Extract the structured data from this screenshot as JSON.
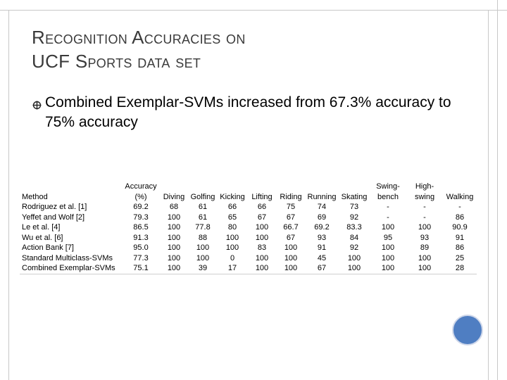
{
  "title": {
    "line1": "Recognition Accuracies on",
    "line2": "UCF Sports data set"
  },
  "bullet": {
    "icon": "crossed-bullet-icon",
    "text": "Combined Exemplar-SVMs increased from 67.3% accuracy to 75% accuracy"
  },
  "table": {
    "headers": [
      "Method",
      "Accuracy (%)",
      "Diving",
      "Golfing",
      "Kicking",
      "Lifting",
      "Riding",
      "Running",
      "Skating",
      "Swing-bench",
      "High-swing",
      "Walking"
    ],
    "rows": [
      [
        "Rodriguez et al. [1]",
        "69.2",
        "68",
        "61",
        "66",
        "66",
        "75",
        "74",
        "73",
        "-",
        "-",
        "-"
      ],
      [
        "Yeffet and Wolf [2]",
        "79.3",
        "100",
        "61",
        "65",
        "67",
        "67",
        "69",
        "92",
        "-",
        "-",
        "86"
      ],
      [
        "Le et al. [4]",
        "86.5",
        "100",
        "77.8",
        "80",
        "100",
        "66.7",
        "69.2",
        "83.3",
        "100",
        "100",
        "90.9"
      ],
      [
        "Wu et al. [6]",
        "91.3",
        "100",
        "88",
        "100",
        "100",
        "67",
        "93",
        "84",
        "95",
        "93",
        "91"
      ],
      [
        "Action Bank [7]",
        "95.0",
        "100",
        "100",
        "100",
        "83",
        "100",
        "91",
        "92",
        "100",
        "89",
        "86"
      ],
      [
        "Standard Multiclass-SVMs",
        "77.3",
        "100",
        "100",
        "0",
        "100",
        "100",
        "45",
        "100",
        "100",
        "100",
        "25"
      ],
      [
        "Combined Exemplar-SVMs",
        "75.1",
        "100",
        "39",
        "17",
        "100",
        "100",
        "67",
        "100",
        "100",
        "100",
        "28"
      ]
    ]
  },
  "colors": {
    "accent_circle": "#4f7ec2",
    "title_text": "#3a3a3a"
  }
}
